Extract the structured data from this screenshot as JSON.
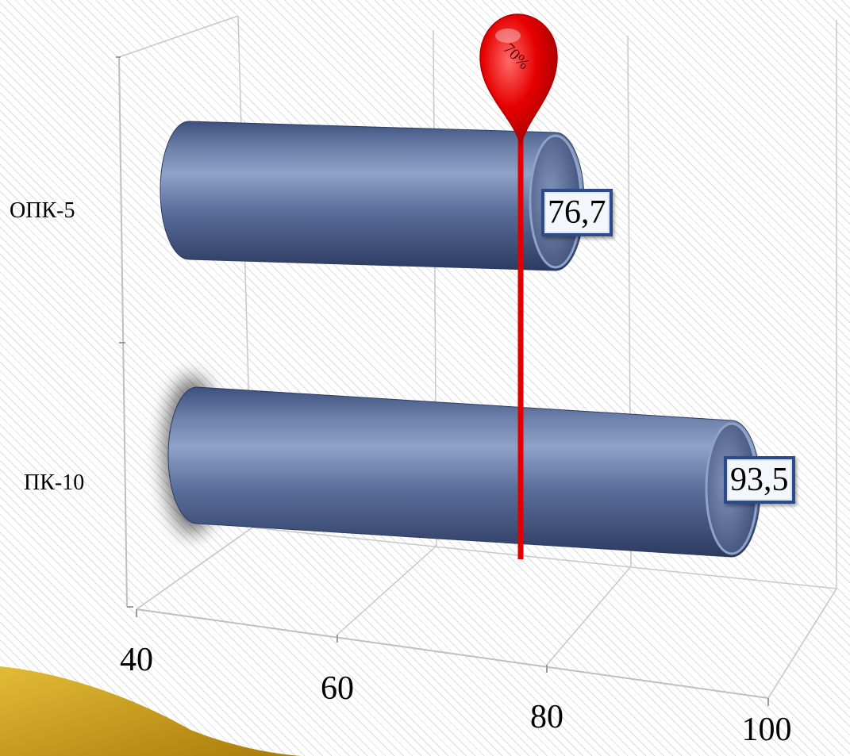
{
  "chart_data": {
    "type": "bar",
    "orientation": "horizontal",
    "style": "3d-cylinder",
    "categories": [
      "ОПК-5",
      "ПК-10"
    ],
    "values": [
      76.7,
      93.5
    ],
    "data_labels": [
      "76,7",
      "93,5"
    ],
    "x_ticks": [
      "40",
      "60",
      "80",
      "100"
    ],
    "xlim": [
      40,
      100
    ],
    "reference_line": {
      "value": 70,
      "label": "70%"
    },
    "grid": true,
    "colors": {
      "bar": "#5b6f9c",
      "bar_dark": "#33446e",
      "bar_light": "#8fa2c8",
      "reference": "#e00000",
      "label_border": "#2d4a8a",
      "accent_arrow": "#c49a17"
    }
  }
}
